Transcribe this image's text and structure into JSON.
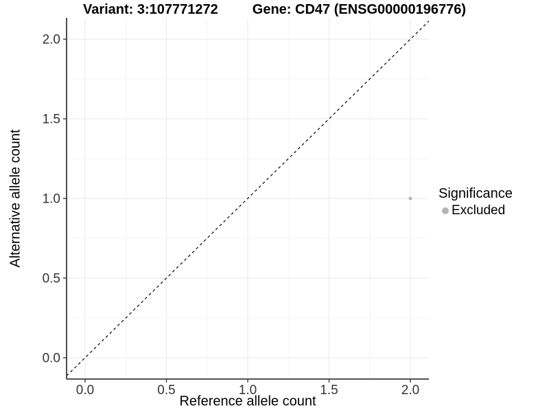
{
  "header": {
    "variant_title": "Variant: 3:107771272",
    "gene_title": "Gene: CD47 (ENSG00000196776)"
  },
  "legend": {
    "title": "Significance",
    "items": [
      {
        "label": "Excluded",
        "color": "#b5b5b5",
        "shape": "circle"
      }
    ]
  },
  "chart_data": {
    "type": "scatter",
    "title": "Variant: 3:107771272   Gene: CD47 (ENSG00000196776)",
    "xlabel": "Reference allele count",
    "ylabel": "Alternative allele count",
    "xlim": [
      -0.114,
      2.114
    ],
    "ylim": [
      -0.134,
      2.134
    ],
    "x_ticks": {
      "values": [
        0.0,
        0.5,
        1.0,
        1.5,
        2.0
      ],
      "labels": [
        "0.0",
        "0.5",
        "1.0",
        "1.5",
        "2.0"
      ]
    },
    "y_ticks": {
      "values": [
        0.0,
        0.5,
        1.0,
        1.5,
        2.0
      ],
      "labels": [
        "0.0",
        "0.5",
        "1.0",
        "1.5",
        "2.0"
      ]
    },
    "minor_tick_step": 0.25,
    "grid": {
      "major": true,
      "minor": true
    },
    "series": [
      {
        "name": "Excluded",
        "color": "#b5b5b5",
        "point_radius": 2.5,
        "points": [
          {
            "x": 2.0,
            "y": 1.0
          }
        ]
      }
    ],
    "reference_line": {
      "kind": "identity",
      "equation": "y = x",
      "style": "dashed",
      "color": "#000000"
    },
    "legend_position": "right"
  },
  "colors": {
    "background": "#ffffff",
    "point": "#b5b5b5",
    "grid_major": "#e9e9e9",
    "grid_minor": "#f4f4f4",
    "axis_line": "#3a3a3a",
    "tick_text": "#333333",
    "title_text": "#000000"
  }
}
